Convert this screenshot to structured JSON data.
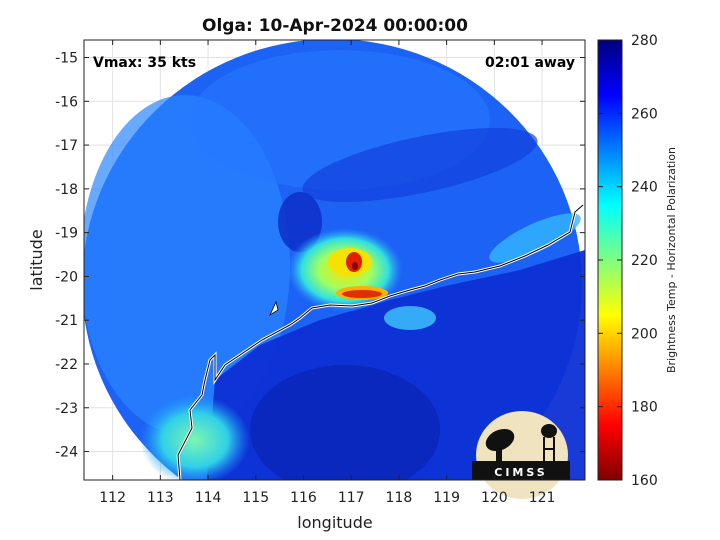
{
  "chart_data": {
    "type": "heatmap",
    "title": "Olga: 10-Apr-2024 00:00:00",
    "xlabel": "longitude",
    "ylabel": "latitude",
    "xlim": [
      111.4,
      121.9
    ],
    "ylim": [
      -24.65,
      -14.6
    ],
    "xticks": [
      "112",
      "113",
      "114",
      "115",
      "116",
      "117",
      "118",
      "119",
      "120",
      "121"
    ],
    "yticks": [
      "-15",
      "-16",
      "-17",
      "-18",
      "-19",
      "-20",
      "-21",
      "-22",
      "-23",
      "-24"
    ],
    "grid": true,
    "annotations": {
      "top_left": "Vmax: 35 kts",
      "top_right": "02:01 away"
    },
    "colorbar": {
      "label": "Brightness Temp - Horizontal Polarization",
      "range": [
        160,
        280
      ],
      "ticks": [
        "280",
        "260",
        "240",
        "220",
        "200",
        "180",
        "160"
      ],
      "colormap": "jet"
    },
    "storm_center": {
      "lon": 117.0,
      "lat": -20.0
    },
    "logo_text": "CIMSS"
  }
}
